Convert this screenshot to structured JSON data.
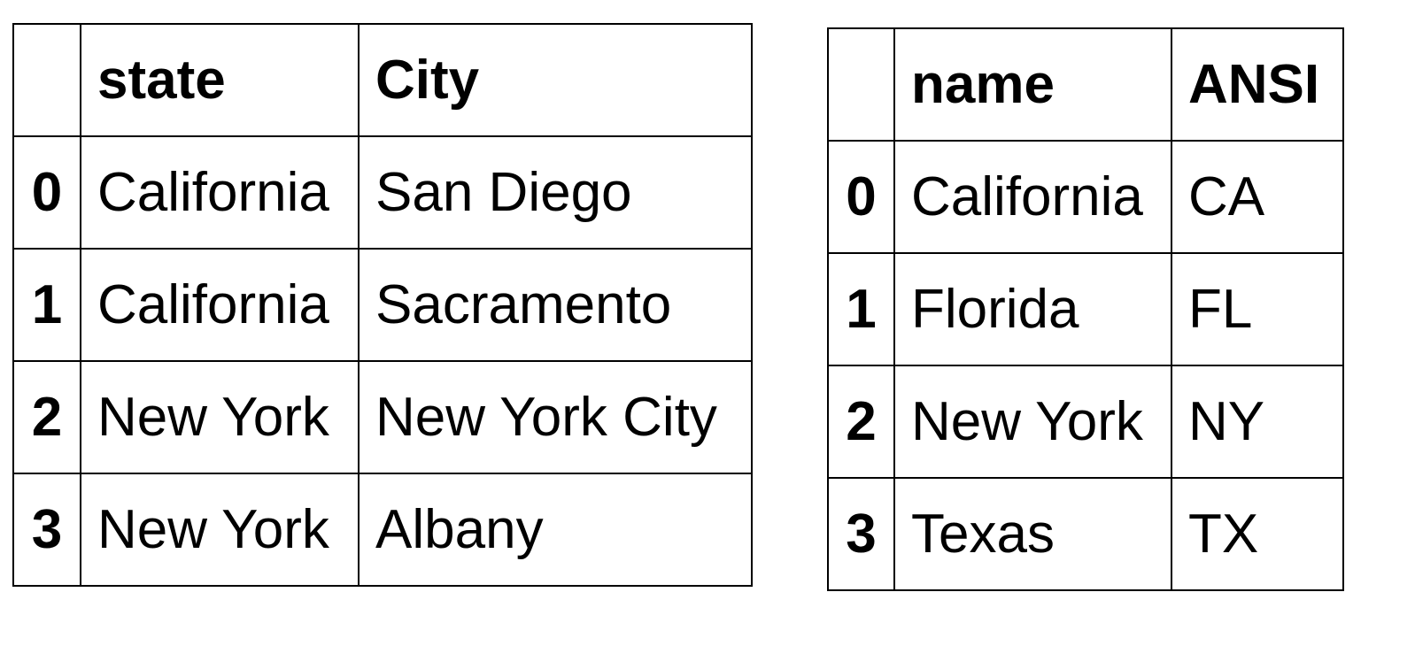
{
  "tables": [
    {
      "columns": [
        "",
        "state",
        "City"
      ],
      "rows": [
        {
          "index": "0",
          "cells": [
            "California",
            "San Diego"
          ]
        },
        {
          "index": "1",
          "cells": [
            "California",
            "Sacramento"
          ]
        },
        {
          "index": "2",
          "cells": [
            "New York",
            "New York City"
          ]
        },
        {
          "index": "3",
          "cells": [
            "New York",
            "Albany"
          ]
        }
      ]
    },
    {
      "columns": [
        "",
        "name",
        "ANSI"
      ],
      "rows": [
        {
          "index": "0",
          "cells": [
            "California",
            "CA"
          ]
        },
        {
          "index": "1",
          "cells": [
            "Florida",
            "FL"
          ]
        },
        {
          "index": "2",
          "cells": [
            "New York",
            "NY"
          ]
        },
        {
          "index": "3",
          "cells": [
            "Texas",
            "TX"
          ]
        }
      ]
    }
  ]
}
